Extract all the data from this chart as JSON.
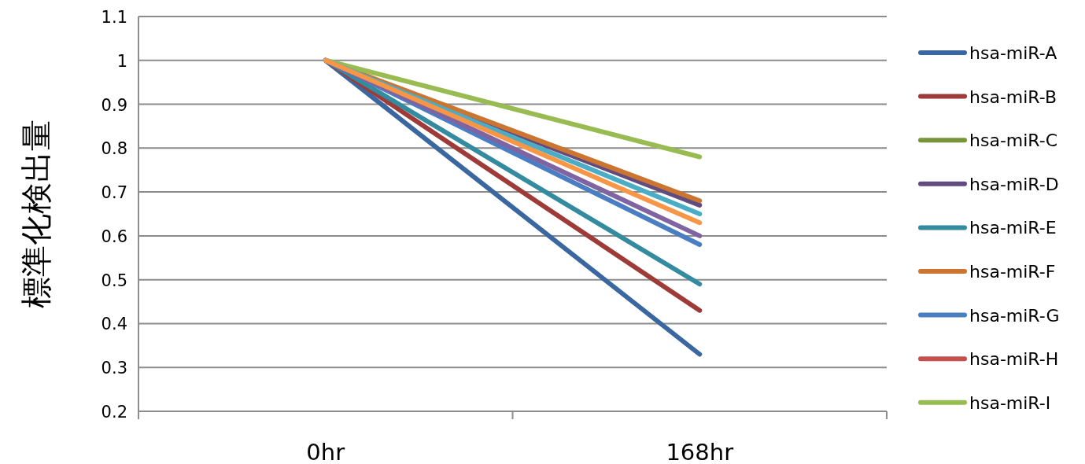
{
  "chart_data": {
    "type": "line",
    "ylabel": "標準化検出量",
    "categories": [
      "0hr",
      "168hr"
    ],
    "ylim": [
      0.2,
      1.1
    ],
    "yticks": [
      0.2,
      0.3,
      0.4,
      0.5,
      0.6,
      0.7,
      0.8,
      0.9,
      1,
      1.1
    ],
    "grid": "y",
    "legend": "right",
    "line_style": "solid",
    "marker": "none",
    "series": [
      {
        "name": "hsa-miR-A",
        "color": "#3a67a0",
        "values": [
          1,
          0.33
        ]
      },
      {
        "name": "hsa-miR-B",
        "color": "#9e3b38",
        "values": [
          1,
          0.43
        ]
      },
      {
        "name": "hsa-miR-C",
        "color": "#78953c",
        "values": [
          null,
          null
        ]
      },
      {
        "name": "hsa-miR-D",
        "color": "#624c7f",
        "values": [
          1,
          0.67
        ]
      },
      {
        "name": "hsa-miR-E",
        "color": "#348a9e",
        "values": [
          1,
          0.49
        ]
      },
      {
        "name": "hsa-miR-F",
        "color": "#cc7530",
        "values": [
          1,
          0.68
        ]
      },
      {
        "name": "hsa-miR-G",
        "color": "#4a7ec2",
        "values": [
          1,
          0.58
        ]
      },
      {
        "name": "hsa-miR-H",
        "color": "#c4504d",
        "values": [
          null,
          null
        ]
      },
      {
        "name": "hsa-miR-I",
        "color": "#98bb52",
        "values": [
          1,
          0.78
        ]
      },
      {
        "color": "#8064a2",
        "values": [
          1,
          0.6
        ]
      },
      {
        "color": "#4bacc6",
        "values": [
          1,
          0.65
        ]
      },
      {
        "color": "#f79646",
        "values": [
          1,
          0.63
        ]
      }
    ]
  }
}
